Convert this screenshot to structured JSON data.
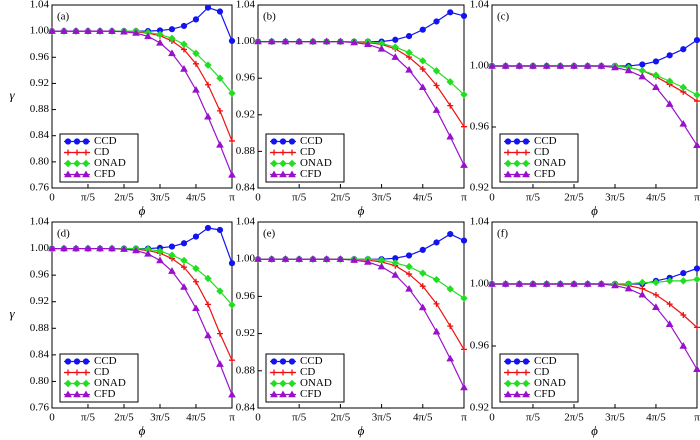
{
  "chart_data": [
    {
      "type": "line",
      "label": "(a)",
      "xlabel": "ϕ",
      "ylabel": "γ",
      "x": [
        0,
        0.209,
        0.419,
        0.628,
        0.838,
        1.047,
        1.257,
        1.466,
        1.676,
        1.885,
        2.094,
        2.304,
        2.513,
        2.723,
        2.932,
        3.142
      ],
      "xlim": [
        0,
        3.142
      ],
      "xticks": [
        0,
        {
          "value": 0.628,
          "label": "π/5"
        },
        {
          "value": 1.257,
          "label": "2π/5"
        },
        {
          "value": 1.885,
          "label": "3π/5"
        },
        {
          "value": 2.513,
          "label": "4π/5"
        },
        {
          "value": 3.142,
          "label": "π"
        }
      ],
      "ylim": [
        0.76,
        1.04
      ],
      "yticks": [
        0.76,
        {
          "value": 0.8,
          "label": "0.80"
        },
        0.84,
        0.88,
        0.92,
        0.96,
        {
          "value": 1,
          "label": "1.00"
        },
        1.04
      ],
      "legend": "lower left",
      "series": [
        {
          "name": "CCD",
          "color": "#1414f0",
          "marker": "circle",
          "values": [
            1,
            1,
            1,
            1,
            1,
            1,
            1,
            1,
            1,
            1.001,
            1.003,
            1.008,
            1.018,
            1.036,
            1.03,
            0.985
          ]
        },
        {
          "name": "CD",
          "color": "#ee1111",
          "marker": "plus",
          "values": [
            1,
            1,
            1,
            1,
            1,
            1,
            1,
            0.999,
            0.997,
            0.993,
            0.985,
            0.972,
            0.95,
            0.918,
            0.878,
            0.832
          ]
        },
        {
          "name": "ONAD",
          "color": "#22dd22",
          "marker": "diamond",
          "values": [
            1,
            1,
            1,
            1,
            1,
            1,
            1,
            1,
            0.998,
            0.995,
            0.989,
            0.98,
            0.966,
            0.948,
            0.928,
            0.905
          ]
        },
        {
          "name": "CFD",
          "color": "#9911cc",
          "marker": "triangle",
          "values": [
            1,
            1,
            1,
            1,
            1,
            1,
            0.999,
            0.997,
            0.992,
            0.982,
            0.966,
            0.942,
            0.91,
            0.869,
            0.826,
            0.78
          ]
        }
      ]
    },
    {
      "type": "line",
      "label": "(b)",
      "xlabel": "ϕ",
      "x": [
        0,
        0.209,
        0.419,
        0.628,
        0.838,
        1.047,
        1.257,
        1.466,
        1.676,
        1.885,
        2.094,
        2.304,
        2.513,
        2.723,
        2.932,
        3.142
      ],
      "xlim": [
        0,
        3.142
      ],
      "xticks": [
        0,
        {
          "value": 0.628,
          "label": "π/5"
        },
        {
          "value": 1.257,
          "label": "2π/5"
        },
        {
          "value": 1.885,
          "label": "3π/5"
        },
        {
          "value": 2.513,
          "label": "4π/5"
        },
        {
          "value": 3.142,
          "label": "π"
        }
      ],
      "ylim": [
        0.84,
        1.04
      ],
      "yticks": [
        0.84,
        0.88,
        0.92,
        0.96,
        {
          "value": 1,
          "label": "1.00"
        },
        1.04
      ],
      "legend": "lower left",
      "series": [
        {
          "name": "CCD",
          "color": "#1414f0",
          "marker": "circle",
          "values": [
            1,
            1,
            1,
            1,
            1,
            1,
            1,
            1,
            1,
            1,
            1.002,
            1.006,
            1.013,
            1.022,
            1.032,
            1.028
          ]
        },
        {
          "name": "CD",
          "color": "#ee1111",
          "marker": "plus",
          "values": [
            1,
            1,
            1,
            1,
            1,
            1,
            1,
            1,
            0.999,
            0.997,
            0.992,
            0.983,
            0.97,
            0.952,
            0.93,
            0.907
          ]
        },
        {
          "name": "ONAD",
          "color": "#22dd22",
          "marker": "diamond",
          "values": [
            1,
            1,
            1,
            1,
            1,
            1,
            1,
            1,
            1,
            0.998,
            0.994,
            0.988,
            0.979,
            0.968,
            0.956,
            0.942
          ]
        },
        {
          "name": "CFD",
          "color": "#9911cc",
          "marker": "triangle",
          "values": [
            1,
            1,
            1,
            1,
            1,
            1,
            1,
            0.999,
            0.997,
            0.992,
            0.983,
            0.969,
            0.95,
            0.925,
            0.896,
            0.865
          ]
        }
      ]
    },
    {
      "type": "line",
      "label": "(c)",
      "xlabel": "ϕ",
      "x": [
        0,
        0.209,
        0.419,
        0.628,
        0.838,
        1.047,
        1.257,
        1.466,
        1.676,
        1.885,
        2.094,
        2.304,
        2.513,
        2.723,
        2.932,
        3.142
      ],
      "xlim": [
        0,
        3.142
      ],
      "xticks": [
        0,
        {
          "value": 0.628,
          "label": "π/5"
        },
        {
          "value": 1.257,
          "label": "2π/5"
        },
        {
          "value": 1.885,
          "label": "3π/5"
        },
        {
          "value": 2.513,
          "label": "4π/5"
        },
        {
          "value": 3.142,
          "label": "π"
        }
      ],
      "ylim": [
        0.92,
        1.04
      ],
      "yticks": [
        0.92,
        0.96,
        {
          "value": 1,
          "label": "1.00"
        },
        1.04
      ],
      "legend": "lower left",
      "series": [
        {
          "name": "CCD",
          "color": "#1414f0",
          "marker": "circle",
          "values": [
            1,
            1,
            1,
            1,
            1,
            1,
            1,
            1,
            1,
            1,
            1,
            1.001,
            1.003,
            1.007,
            1.011,
            1.017
          ]
        },
        {
          "name": "CD",
          "color": "#ee1111",
          "marker": "plus",
          "values": [
            1,
            1,
            1,
            1,
            1,
            1,
            1,
            1,
            1,
            1,
            0.999,
            0.997,
            0.993,
            0.988,
            0.983,
            0.977
          ]
        },
        {
          "name": "ONAD",
          "color": "#22dd22",
          "marker": "diamond",
          "values": [
            1,
            1,
            1,
            1,
            1,
            1,
            1,
            1,
            1,
            1,
            0.999,
            0.997,
            0.994,
            0.99,
            0.986,
            0.981
          ]
        },
        {
          "name": "CFD",
          "color": "#9911cc",
          "marker": "triangle",
          "values": [
            1,
            1,
            1,
            1,
            1,
            1,
            1,
            1,
            1,
            0.999,
            0.997,
            0.993,
            0.986,
            0.975,
            0.962,
            0.948
          ]
        }
      ]
    },
    {
      "type": "line",
      "label": "(d)",
      "xlabel": "ϕ",
      "ylabel": "γ",
      "x": [
        0,
        0.209,
        0.419,
        0.628,
        0.838,
        1.047,
        1.257,
        1.466,
        1.676,
        1.885,
        2.094,
        2.304,
        2.513,
        2.723,
        2.932,
        3.142
      ],
      "xlim": [
        0,
        3.142
      ],
      "xticks": [
        0,
        {
          "value": 0.628,
          "label": "π/5"
        },
        {
          "value": 1.257,
          "label": "2π/5"
        },
        {
          "value": 1.885,
          "label": "3π/5"
        },
        {
          "value": 2.513,
          "label": "4π/5"
        },
        {
          "value": 3.142,
          "label": "π"
        }
      ],
      "ylim": [
        0.76,
        1.04
      ],
      "yticks": [
        0.76,
        {
          "value": 0.8,
          "label": "0.80"
        },
        0.84,
        0.88,
        0.92,
        0.96,
        {
          "value": 1,
          "label": "1.00"
        },
        1.04
      ],
      "legend": "lower left",
      "series": [
        {
          "name": "CCD",
          "color": "#1414f0",
          "marker": "circle",
          "values": [
            1,
            1,
            1,
            1,
            1,
            1,
            1,
            1,
            1,
            1.001,
            1.003,
            1.008,
            1.018,
            1.031,
            1.028,
            0.978
          ]
        },
        {
          "name": "CD",
          "color": "#ee1111",
          "marker": "plus",
          "values": [
            1,
            1,
            1,
            1,
            1,
            1,
            1,
            0.999,
            0.997,
            0.993,
            0.985,
            0.972,
            0.95,
            0.916,
            0.872,
            0.832
          ]
        },
        {
          "name": "ONAD",
          "color": "#22dd22",
          "marker": "diamond",
          "values": [
            1,
            1,
            1,
            1,
            1,
            1,
            1,
            1,
            0.999,
            0.996,
            0.99,
            0.982,
            0.97,
            0.955,
            0.936,
            0.915
          ]
        },
        {
          "name": "CFD",
          "color": "#9911cc",
          "marker": "triangle",
          "values": [
            1,
            1,
            1,
            1,
            1,
            1,
            0.999,
            0.997,
            0.992,
            0.982,
            0.966,
            0.942,
            0.91,
            0.869,
            0.826,
            0.78
          ]
        }
      ]
    },
    {
      "type": "line",
      "label": "(e)",
      "xlabel": "ϕ",
      "x": [
        0,
        0.209,
        0.419,
        0.628,
        0.838,
        1.047,
        1.257,
        1.466,
        1.676,
        1.885,
        2.094,
        2.304,
        2.513,
        2.723,
        2.932,
        3.142
      ],
      "xlim": [
        0,
        3.142
      ],
      "xticks": [
        0,
        {
          "value": 0.628,
          "label": "π/5"
        },
        {
          "value": 1.257,
          "label": "2π/5"
        },
        {
          "value": 1.885,
          "label": "3π/5"
        },
        {
          "value": 2.513,
          "label": "4π/5"
        },
        {
          "value": 3.142,
          "label": "π"
        }
      ],
      "ylim": [
        0.84,
        1.04
      ],
      "yticks": [
        0.84,
        0.88,
        0.92,
        0.96,
        {
          "value": 1,
          "label": "1.00"
        },
        1.04
      ],
      "legend": "lower left",
      "series": [
        {
          "name": "CCD",
          "color": "#1414f0",
          "marker": "circle",
          "values": [
            1,
            1,
            1,
            1,
            1,
            1,
            1,
            1,
            1,
            1,
            1.001,
            1.004,
            1.01,
            1.018,
            1.027,
            1.02
          ]
        },
        {
          "name": "CD",
          "color": "#ee1111",
          "marker": "plus",
          "values": [
            1,
            1,
            1,
            1,
            1,
            1,
            1,
            1,
            0.999,
            0.997,
            0.993,
            0.984,
            0.971,
            0.952,
            0.928,
            0.903
          ]
        },
        {
          "name": "ONAD",
          "color": "#22dd22",
          "marker": "diamond",
          "values": [
            1,
            1,
            1,
            1,
            1,
            1,
            1,
            1,
            1,
            0.999,
            0.996,
            0.992,
            0.985,
            0.978,
            0.968,
            0.958
          ]
        },
        {
          "name": "CFD",
          "color": "#9911cc",
          "marker": "triangle",
          "values": [
            1,
            1,
            1,
            1,
            1,
            1,
            1,
            0.999,
            0.997,
            0.992,
            0.983,
            0.968,
            0.948,
            0.922,
            0.893,
            0.862
          ]
        }
      ]
    },
    {
      "type": "line",
      "label": "(f)",
      "xlabel": "ϕ",
      "x": [
        0,
        0.209,
        0.419,
        0.628,
        0.838,
        1.047,
        1.257,
        1.466,
        1.676,
        1.885,
        2.094,
        2.304,
        2.513,
        2.723,
        2.932,
        3.142
      ],
      "xlim": [
        0,
        3.142
      ],
      "xticks": [
        0,
        {
          "value": 0.628,
          "label": "π/5"
        },
        {
          "value": 1.257,
          "label": "2π/5"
        },
        {
          "value": 1.885,
          "label": "3π/5"
        },
        {
          "value": 2.513,
          "label": "4π/5"
        },
        {
          "value": 3.142,
          "label": "π"
        }
      ],
      "ylim": [
        0.92,
        1.04
      ],
      "yticks": [
        0.92,
        0.96,
        {
          "value": 1,
          "label": "1.00"
        },
        1.04
      ],
      "legend": "lower left",
      "series": [
        {
          "name": "CCD",
          "color": "#1414f0",
          "marker": "circle",
          "values": [
            1,
            1,
            1,
            1,
            1,
            1,
            1,
            1,
            1,
            1,
            1,
            1,
            1.002,
            1.004,
            1.007,
            1.01
          ]
        },
        {
          "name": "CD",
          "color": "#ee1111",
          "marker": "plus",
          "values": [
            1,
            1,
            1,
            1,
            1,
            1,
            1,
            1,
            1,
            1,
            0.999,
            0.997,
            0.993,
            0.987,
            0.98,
            0.972
          ]
        },
        {
          "name": "ONAD",
          "color": "#22dd22",
          "marker": "diamond",
          "values": [
            1,
            1,
            1,
            1,
            1,
            1,
            1,
            1,
            1,
            1,
            1,
            1.001,
            1.001,
            1.002,
            1.002,
            1.003
          ]
        },
        {
          "name": "CFD",
          "color": "#9911cc",
          "marker": "triangle",
          "values": [
            1,
            1,
            1,
            1,
            1,
            1,
            1,
            1,
            1,
            0.999,
            0.997,
            0.993,
            0.985,
            0.974,
            0.96,
            0.945
          ]
        }
      ]
    }
  ]
}
